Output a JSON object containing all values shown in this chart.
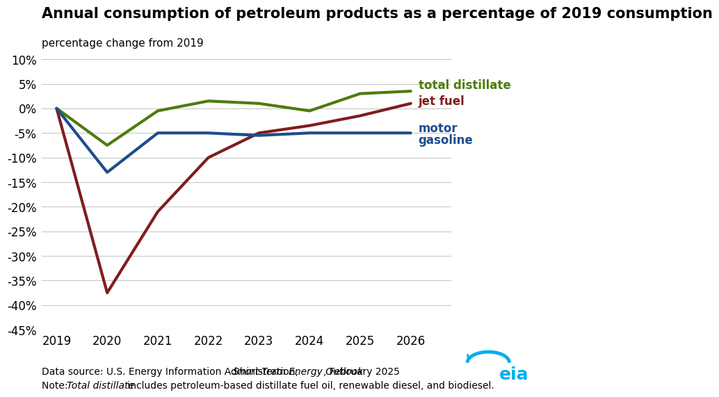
{
  "title": "Annual consumption of petroleum products as a percentage of 2019 consumption",
  "subtitle": "percentage change from 2019",
  "years": [
    2019,
    2020,
    2021,
    2022,
    2023,
    2024,
    2025,
    2026
  ],
  "total_distillate": [
    0,
    -7.5,
    -0.5,
    1.5,
    1.0,
    -0.5,
    3.0,
    3.5
  ],
  "jet_fuel": [
    0,
    -37.5,
    -21.0,
    -10.0,
    -5.0,
    -3.5,
    -1.5,
    1.0
  ],
  "motor_gasoline": [
    0,
    -13.0,
    -5.0,
    -5.0,
    -5.5,
    -5.0,
    -5.0,
    -5.0
  ],
  "total_distillate_color": "#4d7c0f",
  "jet_fuel_color": "#7f1d1d",
  "motor_gasoline_color": "#1e4d8c",
  "ylim": [
    -45,
    12
  ],
  "yticks": [
    10,
    5,
    0,
    -5,
    -10,
    -15,
    -20,
    -25,
    -30,
    -35,
    -40,
    -45
  ],
  "background_color": "#ffffff",
  "grid_color": "#c8c8c8",
  "line_width": 3.0,
  "title_fontsize": 15,
  "subtitle_fontsize": 11,
  "tick_fontsize": 12,
  "annotation_fontsize": 12,
  "footer_fontsize": 10,
  "eia_logo_color": "#00aeef",
  "label_total_distillate": "total distillate",
  "label_jet_fuel": "jet fuel",
  "label_motor_gasoline_1": "motor",
  "label_motor_gasoline_2": "gasoline"
}
